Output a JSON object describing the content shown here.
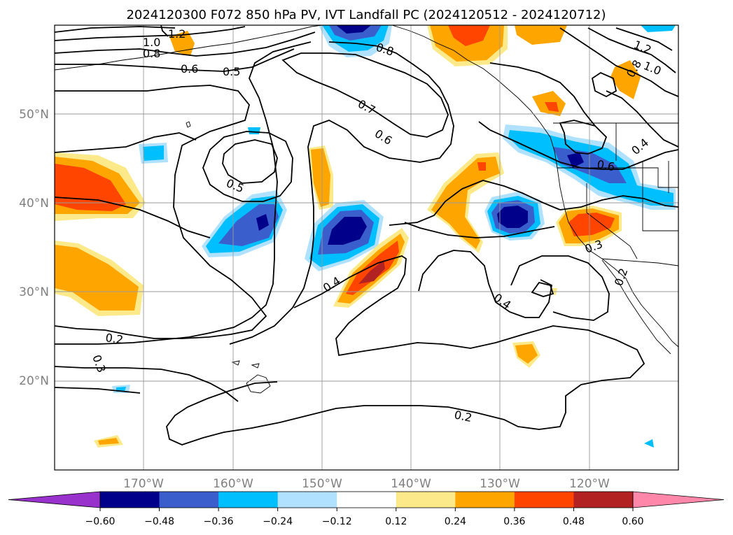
{
  "figure": {
    "title": "2024120300 F072 850 hPa PV, IVT Landfall PC (2024120512 - 2024120712)"
  },
  "map": {
    "projection": "cylindrical",
    "lon_range": [
      180,
      110
    ],
    "lat_range": [
      10,
      60
    ],
    "lon_ticks": [
      "170°W",
      "160°W",
      "150°W",
      "140°W",
      "130°W",
      "120°W"
    ],
    "lat_ticks": [
      "50°N",
      "40°N",
      "30°N",
      "20°N"
    ],
    "grid": true
  },
  "colorbar": {
    "ticks": [
      "−0.60",
      "−0.48",
      "−0.36",
      "−0.24",
      "−0.12",
      "0.12",
      "0.24",
      "0.36",
      "0.48",
      "0.60"
    ],
    "levels": [
      -0.6,
      -0.48,
      -0.36,
      -0.24,
      -0.12,
      0.12,
      0.24,
      0.36,
      0.48,
      0.6
    ],
    "colors": [
      "#9932cc",
      "#00008b",
      "#3a5fcd",
      "#00bfff",
      "#b0e2ff",
      "#ffffff",
      "#fcea8a",
      "#ffa500",
      "#ff4500",
      "#b22222",
      "#ff88aa"
    ],
    "extend": "both"
  },
  "contour_labels": [
    "1.2",
    "1.0",
    "0.8",
    "0.6",
    "0.5",
    "0.8",
    "0.7",
    "0.6",
    "0.5",
    "0.4",
    "1.2",
    "1.0",
    "0.8",
    "0.6",
    "0.4",
    "0.3",
    "0.2",
    "0.4",
    "0.2",
    "0.2",
    "0.3"
  ]
}
